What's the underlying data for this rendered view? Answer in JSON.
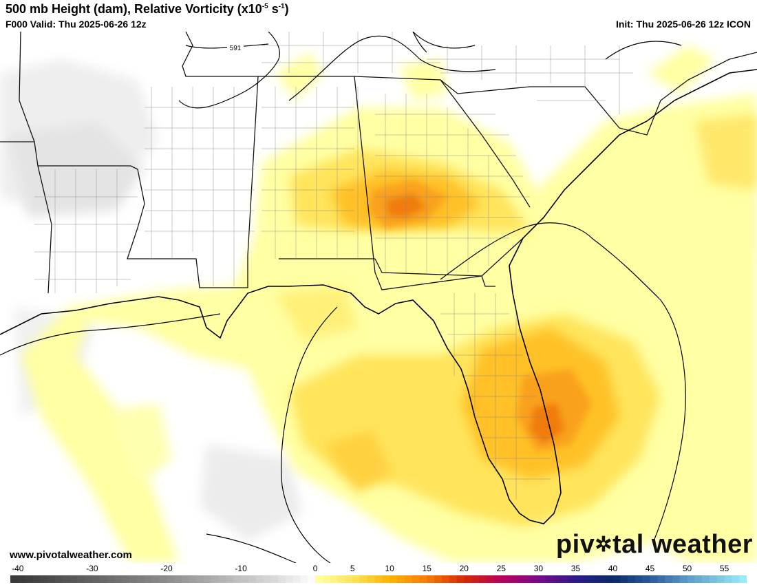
{
  "header": {
    "title_main": "500 mb Height (dam), Relative Vorticity (x10",
    "title_exp1": "-5",
    "title_mid": " s",
    "title_exp2": "-1",
    "title_end": ")",
    "valid": "F000 Valid: Thu 2025-06-26 12z",
    "init": "Init: Thu 2025-06-26 12z ICON"
  },
  "map": {
    "contour_label": "591",
    "colors": {
      "land": "#ffffff",
      "light_yellow": "#ffffa3",
      "yellow": "#ffe45c",
      "gold": "#ffc125",
      "orange": "#f9a11a",
      "dark_orange": "#f07c10",
      "neg_gray": "#e6e6e6",
      "boundary": "#000000"
    }
  },
  "footer": {
    "website": "www.pivotalweather.com",
    "brand_left": "piv",
    "brand_right": "tal weather",
    "brand_gear": "✲"
  },
  "colorbar": {
    "ticks": [
      "-40",
      "-30",
      "-20",
      "-10",
      "0",
      "5",
      "10",
      "15",
      "20",
      "25",
      "30",
      "35",
      "40",
      "45",
      "50",
      "55"
    ],
    "tick_values": [
      -40,
      -30,
      -20,
      -10,
      0,
      5,
      10,
      15,
      20,
      25,
      30,
      35,
      40,
      45,
      50,
      55
    ],
    "stops": [
      {
        "v": -40,
        "c": "#3a3a3a"
      },
      {
        "v": -20,
        "c": "#8c8c8c"
      },
      {
        "v": -5,
        "c": "#dcdcdc"
      },
      {
        "v": 0,
        "c": "#ffffff"
      },
      {
        "v": 0.5,
        "c": "#ffffa0"
      },
      {
        "v": 5,
        "c": "#ffe45c"
      },
      {
        "v": 10,
        "c": "#ffb300"
      },
      {
        "v": 15,
        "c": "#f57c00"
      },
      {
        "v": 20,
        "c": "#d62800"
      },
      {
        "v": 25,
        "c": "#b8005c"
      },
      {
        "v": 30,
        "c": "#7a0a8c"
      },
      {
        "v": 35,
        "c": "#2a1a8c"
      },
      {
        "v": 40,
        "c": "#0a2a6a"
      },
      {
        "v": 45,
        "c": "#2a5a9a"
      },
      {
        "v": 50,
        "c": "#5a9ac8"
      },
      {
        "v": 58,
        "c": "#9af0f8"
      }
    ]
  }
}
